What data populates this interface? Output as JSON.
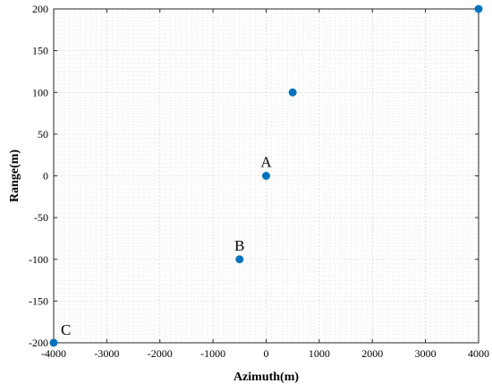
{
  "chart_data": {
    "type": "scatter",
    "title": "",
    "xlabel": "Azimuth(m)",
    "ylabel": "Range(m)",
    "xlim": [
      -4000,
      4000
    ],
    "ylim": [
      -200,
      200
    ],
    "xticks": [
      -4000,
      -3000,
      -2000,
      -1000,
      0,
      1000,
      2000,
      3000,
      4000
    ],
    "yticks": [
      -200,
      -150,
      -100,
      -50,
      0,
      50,
      100,
      150,
      200
    ],
    "xtick_labels": [
      "-4000",
      "-3000",
      "-2000",
      "-1000",
      "0",
      "1000",
      "2000",
      "3000",
      "4000"
    ],
    "ytick_labels": [
      "-200",
      "-150",
      "-100",
      "-50",
      "0",
      "50",
      "100",
      "150",
      "200"
    ],
    "grid": true,
    "marker_color": "#0072BD",
    "points": [
      {
        "x": 0,
        "y": 0,
        "label": "A"
      },
      {
        "x": -500,
        "y": -100,
        "label": "B"
      },
      {
        "x": -4000,
        "y": -200,
        "label": "C"
      },
      {
        "x": 500,
        "y": 100,
        "label": ""
      },
      {
        "x": 4000,
        "y": 200,
        "label": ""
      }
    ]
  }
}
